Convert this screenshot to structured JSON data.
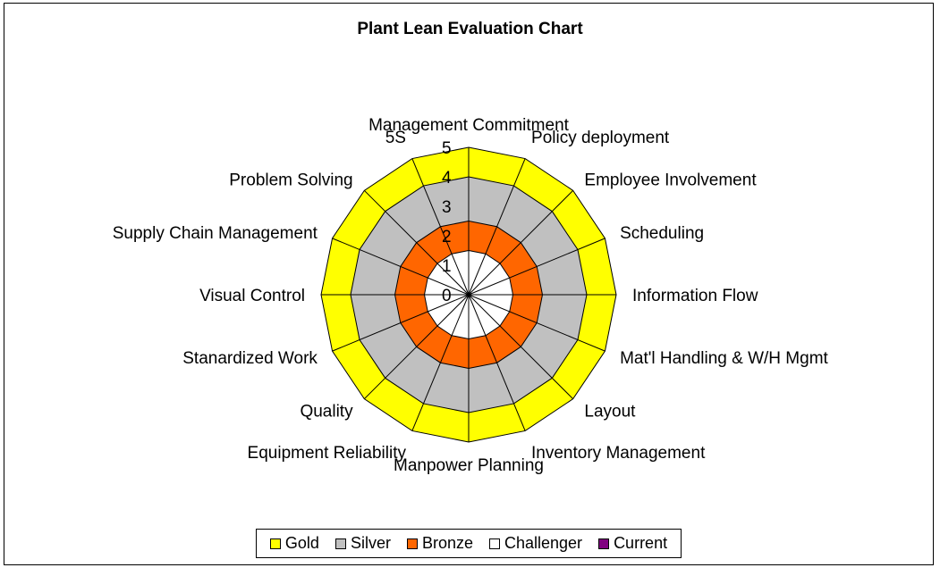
{
  "chart_data": {
    "type": "radar",
    "title": "Plant Lean Evaluation Chart",
    "categories": [
      "Management Commitment",
      "Policy deployment",
      "Employee Involvement",
      "Scheduling",
      "Information Flow",
      "Mat'l Handling & W/H Mgmt",
      "Layout",
      "Inventory Management",
      "Manpower Planning",
      "Equipment Reliability",
      "Quality",
      "Stanardized Work",
      "Visual Control",
      "Supply Chain Management",
      "Problem Solving",
      "5S"
    ],
    "radial_ticks": [
      "0",
      "1",
      "2",
      "3",
      "4",
      "5"
    ],
    "rmax": 5,
    "series": [
      {
        "name": "Gold",
        "color": "#ffff00",
        "value": 5
      },
      {
        "name": "Silver",
        "color": "#c0c0c0",
        "value": 4
      },
      {
        "name": "Bronze",
        "color": "#ff6600",
        "value": 2.5
      },
      {
        "name": "Challenger",
        "color": "#ffffff",
        "value": 1.5
      },
      {
        "name": "Current",
        "color": "#800080",
        "value": 0
      }
    ],
    "legend_position": "bottom"
  }
}
